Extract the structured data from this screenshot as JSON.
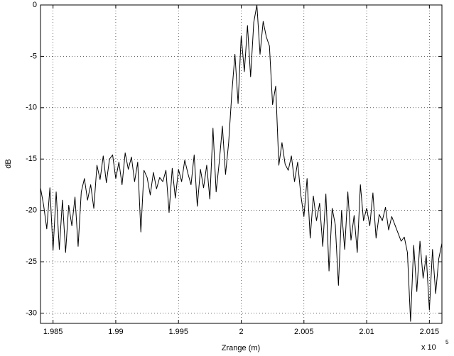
{
  "chart_data": {
    "type": "line",
    "xlabel": "Zrange (m)",
    "ylabel": "dB",
    "x_multiplier": {
      "base": "x 10",
      "exponent": "5"
    },
    "xlim": [
      198400,
      201600
    ],
    "ylim": [
      -31,
      0
    ],
    "xticks": [
      {
        "value": 198500,
        "label": "1.985"
      },
      {
        "value": 199000,
        "label": "1.99"
      },
      {
        "value": 199500,
        "label": "1.995"
      },
      {
        "value": 200000,
        "label": "2"
      },
      {
        "value": 200500,
        "label": "2.005"
      },
      {
        "value": 201000,
        "label": "2.01"
      },
      {
        "value": 201500,
        "label": "2.015"
      }
    ],
    "yticks": [
      0,
      -5,
      -10,
      -15,
      -20,
      -25,
      -30
    ],
    "grid": true,
    "series": [
      {
        "color": "#000000",
        "x": [
          198400,
          198425,
          198450,
          198475,
          198500,
          198525,
          198550,
          198575,
          198600,
          198625,
          198650,
          198675,
          198700,
          198725,
          198750,
          198775,
          198800,
          198825,
          198850,
          198875,
          198900,
          198925,
          198950,
          198975,
          199000,
          199025,
          199050,
          199075,
          199100,
          199125,
          199150,
          199175,
          199200,
          199225,
          199250,
          199275,
          199300,
          199325,
          199350,
          199375,
          199400,
          199425,
          199450,
          199475,
          199500,
          199525,
          199550,
          199575,
          199600,
          199625,
          199650,
          199675,
          199700,
          199725,
          199750,
          199775,
          199800,
          199825,
          199850,
          199875,
          199900,
          199925,
          199950,
          199975,
          200000,
          200025,
          200050,
          200075,
          200100,
          200125,
          200150,
          200175,
          200200,
          200225,
          200250,
          200275,
          200300,
          200325,
          200350,
          200375,
          200400,
          200425,
          200450,
          200475,
          200500,
          200525,
          200550,
          200575,
          200600,
          200625,
          200650,
          200675,
          200700,
          200725,
          200750,
          200775,
          200800,
          200825,
          200850,
          200875,
          200900,
          200925,
          200950,
          200975,
          201000,
          201025,
          201050,
          201075,
          201100,
          201125,
          201150,
          201175,
          201200,
          201225,
          201250,
          201275,
          201300,
          201325,
          201350,
          201375,
          201400,
          201425,
          201450,
          201475,
          201500,
          201525,
          201550,
          201575,
          201600
        ],
        "values": [
          -17.8,
          -19.5,
          -21.8,
          -17.8,
          -23.9,
          -18.2,
          -23.8,
          -19.0,
          -24.1,
          -19.5,
          -21.5,
          -18.7,
          -23.5,
          -18.2,
          -16.9,
          -19.0,
          -17.5,
          -19.8,
          -15.6,
          -17.0,
          -14.7,
          -17.3,
          -15.0,
          -14.6,
          -16.9,
          -15.3,
          -17.5,
          -14.4,
          -16.0,
          -14.8,
          -17.2,
          -15.3,
          -22.1,
          -16.1,
          -16.8,
          -18.5,
          -16.3,
          -17.9,
          -16.8,
          -17.2,
          -16.1,
          -20.2,
          -15.9,
          -18.8,
          -16.0,
          -17.2,
          -15.1,
          -16.4,
          -17.5,
          -14.6,
          -19.6,
          -16.0,
          -17.8,
          -15.6,
          -18.9,
          -12.0,
          -18.2,
          -15.3,
          -11.8,
          -16.5,
          -13.4,
          -8.6,
          -4.8,
          -9.6,
          -3.0,
          -6.5,
          -2.0,
          -7.0,
          -1.7,
          0,
          -4.8,
          -1.6,
          -3.1,
          -4.0,
          -9.7,
          -7.9,
          -15.6,
          -13.4,
          -15.5,
          -16.1,
          -14.7,
          -17.2,
          -15.3,
          -18.5,
          -20.6,
          -16.9,
          -22.7,
          -18.6,
          -21.0,
          -19.3,
          -23.5,
          -18.4,
          -25.9,
          -19.8,
          -21.4,
          -27.3,
          -20.0,
          -23.8,
          -18.2,
          -22.9,
          -20.5,
          -24.1,
          -17.5,
          -21.0,
          -19.8,
          -21.5,
          -18.3,
          -22.7,
          -20.4,
          -21.0,
          -19.7,
          -21.9,
          -20.6,
          -21.4,
          -22.2,
          -23.0,
          -22.6,
          -24.1,
          -30.8,
          -23.4,
          -27.9,
          -23.0,
          -26.6,
          -24.4,
          -29.7,
          -23.8,
          -28.1,
          -24.7,
          -23.2
        ]
      }
    ]
  }
}
